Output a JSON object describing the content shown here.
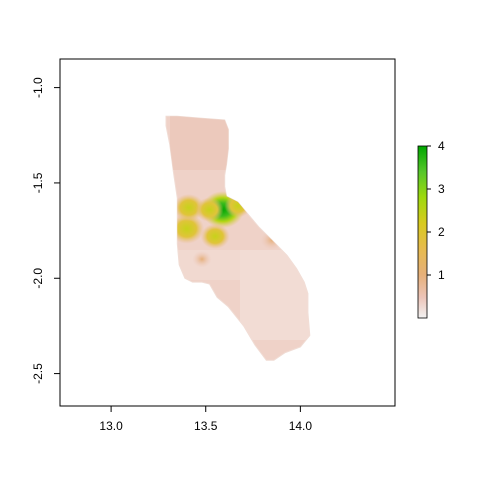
{
  "map": {
    "xlim": [
      12.73,
      14.5
    ],
    "ylim": [
      -2.67,
      -0.85
    ],
    "x_axis": {
      "ticks": [
        13.0,
        13.5,
        14.0
      ],
      "tick_labels": [
        "13.0",
        "13.5",
        "14.0"
      ]
    },
    "y_axis": {
      "ticks": [
        -1.0,
        -1.5,
        -2.0,
        -2.5
      ],
      "tick_labels": [
        "-1.0",
        "-1.5",
        "-2.0",
        "-2.5"
      ]
    },
    "region_outline_lonlat": [
      [
        13.29,
        -1.15
      ],
      [
        13.35,
        -1.15
      ],
      [
        13.47,
        -1.16
      ],
      [
        13.6,
        -1.17
      ],
      [
        13.62,
        -1.22
      ],
      [
        13.62,
        -1.32
      ],
      [
        13.61,
        -1.4
      ],
      [
        13.6,
        -1.46
      ],
      [
        13.6,
        -1.52
      ],
      [
        13.61,
        -1.57
      ],
      [
        13.67,
        -1.6
      ],
      [
        13.72,
        -1.66
      ],
      [
        13.78,
        -1.73
      ],
      [
        13.86,
        -1.81
      ],
      [
        13.93,
        -1.88
      ],
      [
        13.98,
        -1.95
      ],
      [
        14.02,
        -2.02
      ],
      [
        14.04,
        -2.08
      ],
      [
        14.04,
        -2.18
      ],
      [
        14.05,
        -2.3
      ],
      [
        14.0,
        -2.36
      ],
      [
        13.92,
        -2.39
      ],
      [
        13.86,
        -2.43
      ],
      [
        13.82,
        -2.43
      ],
      [
        13.76,
        -2.35
      ],
      [
        13.7,
        -2.25
      ],
      [
        13.62,
        -2.15
      ],
      [
        13.56,
        -2.1
      ],
      [
        13.52,
        -2.03
      ],
      [
        13.48,
        -2.02
      ],
      [
        13.43,
        -2.02
      ],
      [
        13.39,
        -2.0
      ],
      [
        13.36,
        -1.93
      ],
      [
        13.35,
        -1.82
      ],
      [
        13.35,
        -1.7
      ],
      [
        13.35,
        -1.58
      ],
      [
        13.33,
        -1.45
      ],
      [
        13.31,
        -1.3
      ],
      [
        13.29,
        -1.2
      ]
    ],
    "hotspots_lonlat": [
      {
        "lon": 13.59,
        "lat": -1.64,
        "value": 3.6
      },
      {
        "lon": 13.4,
        "lat": -1.74,
        "value": 2.6
      },
      {
        "lon": 13.41,
        "lat": -1.63,
        "value": 2.2
      },
      {
        "lon": 13.55,
        "lat": -1.78,
        "value": 1.9
      },
      {
        "lon": 13.52,
        "lat": -1.64,
        "value": 1.8
      },
      {
        "lon": 13.67,
        "lat": -1.62,
        "value": 1.6
      },
      {
        "lon": 13.85,
        "lat": -1.8,
        "value": 1.1
      },
      {
        "lon": 13.48,
        "lat": -1.9,
        "value": 0.7
      }
    ]
  },
  "legend": {
    "range": [
      0,
      4
    ],
    "ticks": [
      1,
      2,
      3,
      4
    ],
    "tick_labels": [
      "1",
      "2",
      "3",
      "4"
    ],
    "colors": [
      "#f2f2f2",
      "#ecc4b8",
      "#e6b07a",
      "#e7bb4f",
      "#d8ca1f",
      "#9fd90e",
      "#56c62a",
      "#19a32c",
      "#00a600"
    ]
  }
}
